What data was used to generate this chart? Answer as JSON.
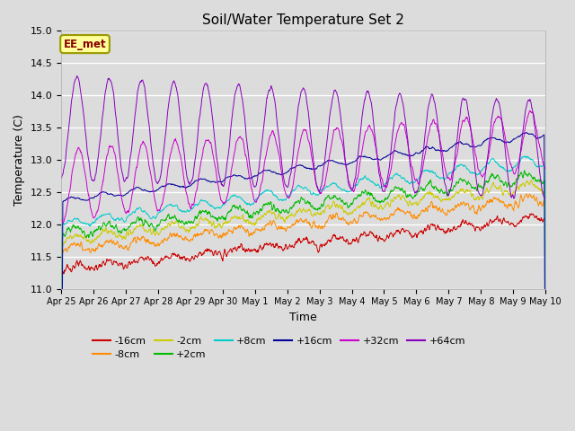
{
  "title": "Soil/Water Temperature Set 2",
  "xlabel": "Time",
  "ylabel": "Temperature (C)",
  "ylim": [
    11.0,
    15.0
  ],
  "yticks": [
    11.0,
    11.5,
    12.0,
    12.5,
    13.0,
    13.5,
    14.0,
    14.5,
    15.0
  ],
  "bg_color": "#dcdcdc",
  "series": [
    {
      "label": "-16cm",
      "color": "#cc0000"
    },
    {
      "label": "-8cm",
      "color": "#ff8c00"
    },
    {
      "label": "-2cm",
      "color": "#cccc00"
    },
    {
      "label": "+2cm",
      "color": "#00bb00"
    },
    {
      "label": "+8cm",
      "color": "#00cccc"
    },
    {
      "label": "+16cm",
      "color": "#000099"
    },
    {
      "label": "+32cm",
      "color": "#cc00cc"
    },
    {
      "label": "+64cm",
      "color": "#8800bb"
    }
  ],
  "tick_labels": [
    "Apr 25",
    "Apr 26",
    "Apr 27",
    "Apr 28",
    "Apr 29",
    "Apr 30",
    "May 1",
    "May 2",
    "May 3",
    "May 4",
    "May 5",
    "May 6",
    "May 7",
    "May 8",
    "May 9",
    "May 10"
  ],
  "annotation_text": "EE_met",
  "annotation_color": "#880000",
  "annotation_bg": "#ffff99",
  "annotation_border": "#999900",
  "n_points": 1440,
  "total_days": 15
}
